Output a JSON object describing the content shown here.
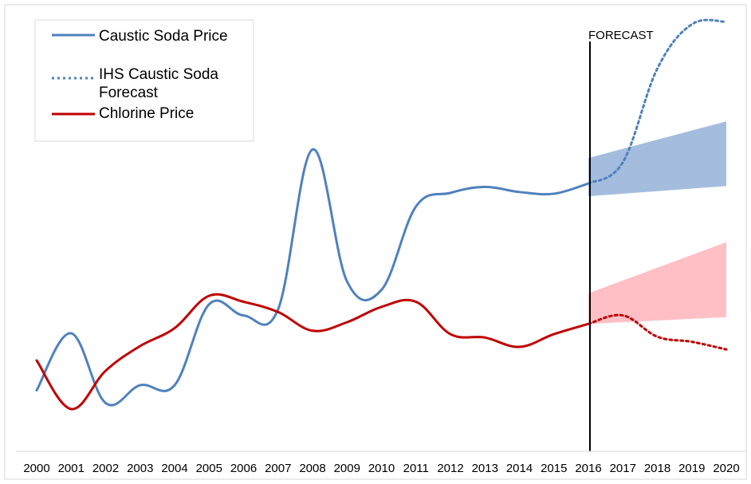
{
  "chart_data": {
    "type": "line",
    "annotation": "FORECAST",
    "x": [
      "2000",
      "2001",
      "2002",
      "2003",
      "2004",
      "2005",
      "2006",
      "2007",
      "2008",
      "2009",
      "2010",
      "2011",
      "2012",
      "2013",
      "2014",
      "2015",
      "2016",
      "2017",
      "2018",
      "2019",
      "2020"
    ],
    "series": [
      {
        "name": "Caustic Soda Price",
        "style": "solid",
        "color": "#4f81bd",
        "x": [
          "2000",
          "2001",
          "2002",
          "2003",
          "2004",
          "2005",
          "2006",
          "2007",
          "2008",
          "2009",
          "2010",
          "2011",
          "2012",
          "2013",
          "2014",
          "2015",
          "2016"
        ],
        "values": [
          67,
          134,
          52,
          73,
          73,
          168,
          155,
          162,
          350,
          195,
          185,
          283,
          299,
          306,
          300,
          298,
          310
        ]
      },
      {
        "name": "IHS Caustic Soda Forecast",
        "style": "dotted",
        "color": "#4f81bd",
        "x": [
          "2016",
          "2017",
          "2018",
          "2019",
          "2020"
        ],
        "values": [
          310,
          335,
          445,
          497,
          500
        ]
      },
      {
        "name": "Chlorine Price",
        "style": "solid",
        "color": "#c00000",
        "x": [
          "2000",
          "2001",
          "2002",
          "2003",
          "2004",
          "2005",
          "2006",
          "2007",
          "2008",
          "2009",
          "2010",
          "2011",
          "2012",
          "2013",
          "2014",
          "2015",
          "2016",
          "2017",
          "2018",
          "2019",
          "2020"
        ],
        "values": [
          102,
          45,
          90,
          119,
          140,
          178,
          171,
          159,
          137,
          147,
          165,
          171,
          133,
          129,
          118,
          133,
          145,
          155,
          130,
          124,
          115
        ],
        "dotted_from": "2016"
      }
    ],
    "bands": [
      {
        "color": "#a4bdde",
        "x": [
          "2016",
          "2020"
        ],
        "lower": [
          295,
          307
        ],
        "upper": [
          340,
          383
        ]
      },
      {
        "color": "#ffbfc4",
        "x": [
          "2016",
          "2020"
        ],
        "lower": [
          145,
          153
        ],
        "upper": [
          181,
          241
        ]
      }
    ],
    "ylim": [
      0,
      520
    ],
    "grid": false,
    "legend_position": "top-left"
  }
}
